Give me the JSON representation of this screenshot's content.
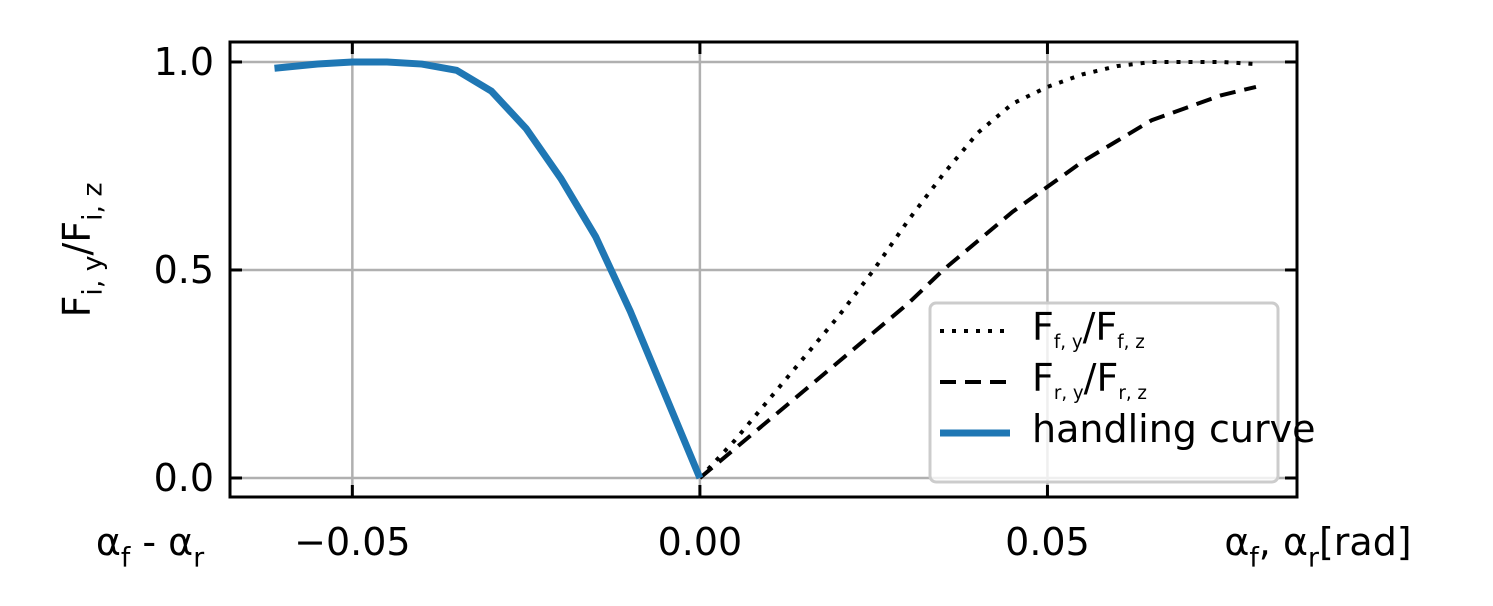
{
  "chart_data": {
    "type": "line",
    "ylabel": [
      "F",
      "i, y",
      "/F",
      "i, z"
    ],
    "xlabel_left": [
      "α",
      "f",
      " - α",
      "r"
    ],
    "xlabel_right": [
      "α",
      "f",
      ", α",
      "r",
      "[rad]"
    ],
    "xlim": [
      -0.0676,
      0.0859
    ],
    "ylim": [
      -0.0457,
      1.048
    ],
    "xticks": [
      {
        "value": -0.05,
        "label": "−0.05"
      },
      {
        "value": 0,
        "label": "0.00"
      },
      {
        "value": 0.05,
        "label": "0.05"
      }
    ],
    "yticks": [
      {
        "value": 0,
        "label": "0.0"
      },
      {
        "value": 0.5,
        "label": "0.5"
      },
      {
        "value": 1,
        "label": "1.0"
      }
    ],
    "grid": true,
    "legend": "lower right",
    "series": [
      {
        "name": [
          "F",
          "f, y",
          "/F",
          "f, z"
        ],
        "color": "#000000",
        "style": "dotted",
        "width": 4,
        "x": [
          0,
          0.005,
          0.01,
          0.015,
          0.02,
          0.025,
          0.03,
          0.035,
          0.04,
          0.045,
          0.05,
          0.055,
          0.06,
          0.065,
          0.07,
          0.075,
          0.08
        ],
        "values": [
          0,
          0.09,
          0.19,
          0.29,
          0.39,
          0.5,
          0.62,
          0.73,
          0.83,
          0.9,
          0.94,
          0.97,
          0.99,
          1.0,
          1.0,
          1.0,
          0.995
        ]
      },
      {
        "name": [
          "F",
          "r, y",
          "/F",
          "r, z"
        ],
        "color": "#000000",
        "style": "dashed",
        "width": 4,
        "x": [
          0,
          0.005,
          0.01,
          0.015,
          0.02,
          0.025,
          0.03,
          0.035,
          0.04,
          0.045,
          0.05,
          0.055,
          0.06,
          0.065,
          0.07,
          0.075,
          0.08
        ],
        "values": [
          0,
          0.07,
          0.14,
          0.21,
          0.28,
          0.35,
          0.42,
          0.5,
          0.57,
          0.64,
          0.7,
          0.76,
          0.81,
          0.86,
          0.89,
          0.92,
          0.94
        ]
      },
      {
        "name": [
          "handling curve"
        ],
        "color": "#1f77b4",
        "style": "solid",
        "width": 7,
        "x": [
          -0.0612,
          -0.055,
          -0.05,
          -0.045,
          -0.04,
          -0.035,
          -0.03,
          -0.025,
          -0.02,
          -0.015,
          -0.01,
          -0.005,
          0
        ],
        "values": [
          0.985,
          0.995,
          1.0,
          1.0,
          0.995,
          0.98,
          0.93,
          0.84,
          0.72,
          0.58,
          0.4,
          0.2,
          0
        ]
      }
    ]
  }
}
